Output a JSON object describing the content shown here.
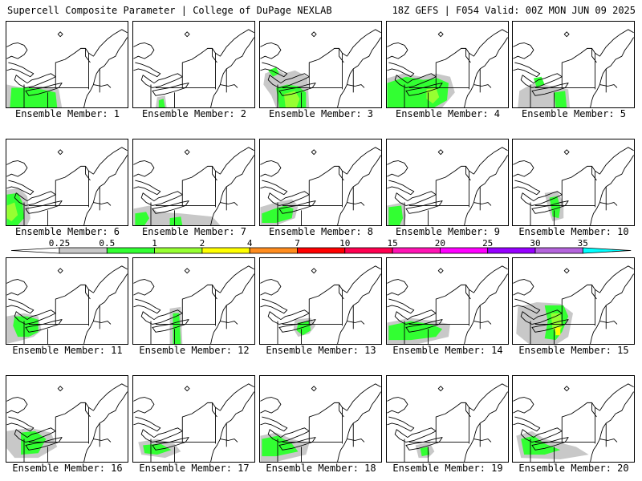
{
  "header": {
    "left": "Supercell Composite Parameter | College of DuPage NEXLAB",
    "right": "18Z GEFS | F054 Valid: 00Z MON JUN 09 2025"
  },
  "colorbar": {
    "labels": [
      "0.25",
      "0.5",
      "1",
      "2",
      "4",
      "7",
      "10",
      "15",
      "20",
      "25",
      "30",
      "35"
    ],
    "colors": [
      "#c8c8c8",
      "#32ff32",
      "#96ff32",
      "#ffff00",
      "#ff8c1e",
      "#ff0000",
      "#ff0050",
      "#ff14b4",
      "#ff00ff",
      "#9600ff",
      "#b464dc",
      "#00ffff"
    ]
  },
  "panels": [
    {
      "label": "Ensemble Member: 1"
    },
    {
      "label": "Ensemble Member: 2"
    },
    {
      "label": "Ensemble Member: 3"
    },
    {
      "label": "Ensemble Member: 4"
    },
    {
      "label": "Ensemble Member: 5"
    },
    {
      "label": "Ensemble Member: 6"
    },
    {
      "label": "Ensemble Member: 7"
    },
    {
      "label": "Ensemble Member: 8"
    },
    {
      "label": "Ensemble Member: 9"
    },
    {
      "label": "Ensemble Member: 10"
    },
    {
      "label": "Ensemble Member: 11"
    },
    {
      "label": "Ensemble Member: 12"
    },
    {
      "label": "Ensemble Member: 13"
    },
    {
      "label": "Ensemble Member: 14"
    },
    {
      "label": "Ensemble Member: 15"
    },
    {
      "label": "Ensemble Member: 16"
    },
    {
      "label": "Ensemble Member: 17"
    },
    {
      "label": "Ensemble Member: 18"
    },
    {
      "label": "Ensemble Member: 19"
    },
    {
      "label": "Ensemble Member: 20"
    }
  ]
}
